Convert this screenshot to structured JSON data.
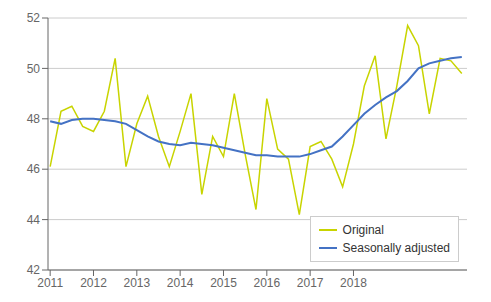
{
  "chart_data": {
    "type": "line",
    "x": [
      2011,
      2011.25,
      2011.5,
      2011.75,
      2012,
      2012.25,
      2012.5,
      2012.75,
      2013,
      2013.25,
      2013.5,
      2013.75,
      2014,
      2014.25,
      2014.5,
      2014.75,
      2015,
      2015.25,
      2015.5,
      2015.75,
      2016,
      2016.25,
      2016.5,
      2016.75,
      2017,
      2017.25,
      2017.5,
      2017.75,
      2018,
      2018.25,
      2018.5,
      2018.75,
      2019,
      2019.25,
      2019.5,
      2019.75,
      2020,
      2020.25,
      2020.5
    ],
    "series": [
      {
        "name": "Original",
        "color": "#c8d400",
        "values": [
          46.1,
          48.3,
          48.5,
          47.7,
          47.5,
          48.3,
          50.4,
          46.1,
          47.8,
          48.9,
          47.3,
          46.1,
          47.5,
          49.0,
          45.0,
          47.3,
          46.5,
          49.0,
          46.6,
          44.4,
          48.8,
          46.8,
          46.4,
          44.2,
          46.9,
          47.1,
          46.4,
          45.3,
          47.0,
          49.3,
          50.5,
          47.2,
          49.3,
          51.7,
          50.9,
          48.2,
          50.4,
          50.3,
          49.8
        ]
      },
      {
        "name": "Seasonally adjusted",
        "color": "#4472c4",
        "values": [
          47.9,
          47.8,
          47.95,
          48.0,
          48.0,
          47.95,
          47.9,
          47.8,
          47.55,
          47.3,
          47.1,
          47.0,
          46.95,
          47.05,
          47.0,
          46.95,
          46.85,
          46.75,
          46.65,
          46.55,
          46.55,
          46.5,
          46.5,
          46.5,
          46.6,
          46.75,
          46.9,
          47.3,
          47.75,
          48.2,
          48.55,
          48.85,
          49.1,
          49.5,
          50.0,
          50.2,
          50.3,
          50.4,
          50.45
        ]
      }
    ],
    "xlim": [
      2010.95,
      2020.62
    ],
    "xticks": [
      2011,
      2012,
      2013,
      2014,
      2015,
      2016,
      2017,
      2018
    ],
    "ylim": [
      42,
      52
    ],
    "yticks": [
      42,
      44,
      46,
      48,
      50,
      52
    ],
    "grid": true,
    "legend": "lower right"
  }
}
